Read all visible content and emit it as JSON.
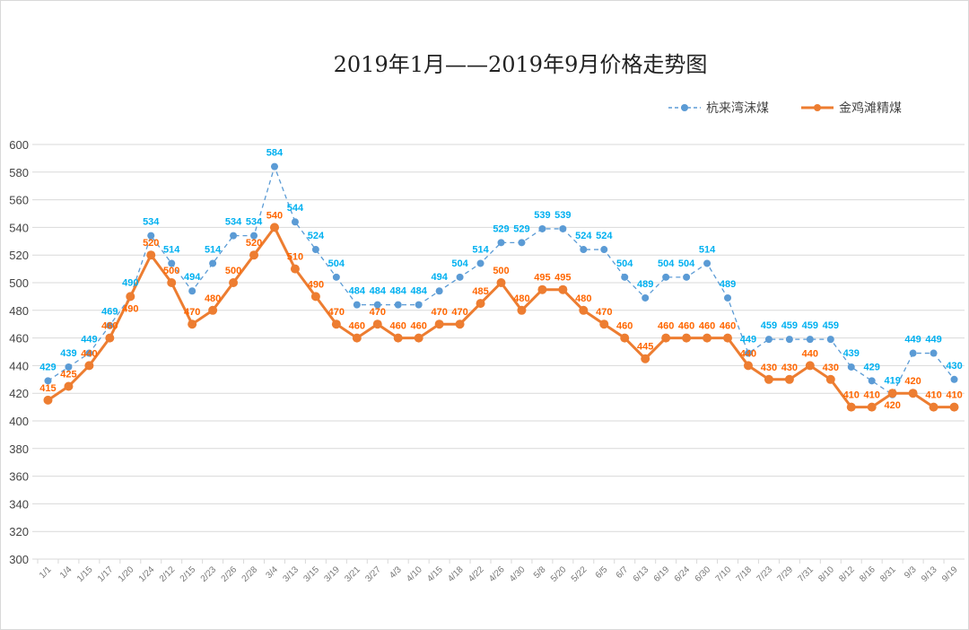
{
  "chart_data": {
    "type": "line",
    "title": "2019年1月——2019年9月价格走势图",
    "ylim": [
      300,
      600
    ],
    "yticks": [
      300,
      320,
      340,
      360,
      380,
      400,
      420,
      440,
      460,
      480,
      500,
      520,
      540,
      560,
      580,
      600
    ],
    "grid": true,
    "legend_position": "top-right",
    "categories": [
      "1/1",
      "1/4",
      "1/15",
      "1/17",
      "1/20",
      "1/24",
      "2/12",
      "2/15",
      "2/23",
      "2/26",
      "2/28",
      "3/4",
      "3/13",
      "3/15",
      "3/19",
      "3/21",
      "3/27",
      "4/3",
      "4/10",
      "4/15",
      "4/18",
      "4/22",
      "4/26",
      "4/30",
      "5/8",
      "5/20",
      "5/22",
      "6/5",
      "6/7",
      "6/13",
      "6/19",
      "6/24",
      "6/30",
      "7/10",
      "7/18",
      "7/23",
      "7/29",
      "7/31",
      "8/10",
      "8/12",
      "8/16",
      "8/31",
      "9/3",
      "9/13",
      "9/19"
    ],
    "series": [
      {
        "name": "杭来湾沫煤",
        "color": "#5b9bd5",
        "label_color": "#00b0f0",
        "style": "dashed",
        "values": [
          429,
          439,
          449,
          469,
          490,
          534,
          514,
          494,
          514,
          534,
          534,
          584,
          544,
          524,
          504,
          484,
          484,
          484,
          484,
          494,
          504,
          514,
          529,
          529,
          539,
          539,
          524,
          524,
          504,
          489,
          504,
          504,
          514,
          489,
          449,
          459,
          459,
          459,
          459,
          439,
          429,
          419,
          449,
          449,
          430
        ]
      },
      {
        "name": "金鸡滩精煤",
        "color": "#ed7d31",
        "label_color": "#ff6600",
        "style": "solid",
        "values": [
          415,
          425,
          440,
          460,
          490,
          520,
          500,
          470,
          480,
          500,
          520,
          540,
          510,
          490,
          470,
          460,
          470,
          460,
          460,
          470,
          470,
          485,
          500,
          480,
          495,
          495,
          480,
          470,
          460,
          445,
          460,
          460,
          460,
          460,
          440,
          430,
          430,
          440,
          430,
          410,
          410,
          420,
          420,
          410,
          410
        ]
      }
    ]
  }
}
